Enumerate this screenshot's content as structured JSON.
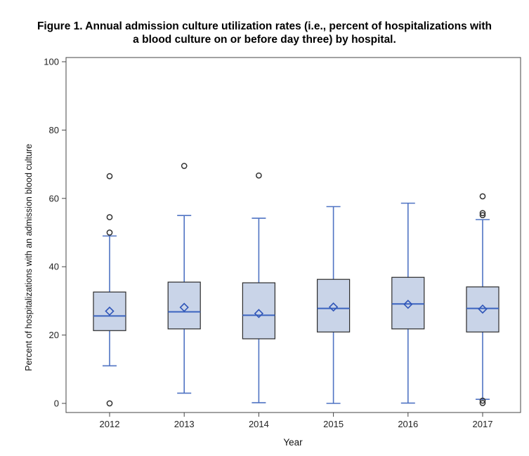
{
  "chart_data": {
    "type": "boxplot",
    "title_lines": [
      "Figure 1. Annual admission culture utilization rates (i.e., percent of hospitalizations with",
      "a blood culture on or before day three) by hospital."
    ],
    "xlabel": "Year",
    "ylabel": "Percent of hospitalizations with an admission blood culture",
    "ylim": [
      0,
      100
    ],
    "yticks": [
      0,
      20,
      40,
      60,
      80,
      100
    ],
    "grid": false,
    "legend": "none",
    "categories": [
      "2012",
      "2013",
      "2014",
      "2015",
      "2016",
      "2017"
    ],
    "boxes": [
      {
        "category": "2012",
        "whisker_low": 11,
        "q1": 21.3,
        "median": 25.6,
        "mean": 27,
        "q3": 32.6,
        "whisker_high": 49,
        "outliers": [
          0,
          50,
          54.5,
          66.5
        ]
      },
      {
        "category": "2013",
        "whisker_low": 3,
        "q1": 21.8,
        "median": 26.8,
        "mean": 28.1,
        "q3": 35.5,
        "whisker_high": 55,
        "outliers": [
          69.5
        ]
      },
      {
        "category": "2014",
        "whisker_low": 0.2,
        "q1": 18.9,
        "median": 25.8,
        "mean": 26.3,
        "q3": 35.3,
        "whisker_high": 54.2,
        "outliers": [
          66.7
        ]
      },
      {
        "category": "2015",
        "whisker_low": 0,
        "q1": 20.9,
        "median": 27.8,
        "mean": 28.2,
        "q3": 36.3,
        "whisker_high": 57.6,
        "outliers": []
      },
      {
        "category": "2016",
        "whisker_low": 0.1,
        "q1": 21.8,
        "median": 29.1,
        "mean": 29,
        "q3": 36.9,
        "whisker_high": 58.6,
        "outliers": []
      },
      {
        "category": "2017",
        "whisker_low": 1.2,
        "q1": 20.9,
        "median": 27.8,
        "mean": 27.6,
        "q3": 34.1,
        "whisker_high": 53.8,
        "outliers": [
          0.1,
          0.8,
          55.1,
          55.7,
          60.6
        ]
      }
    ],
    "colors": {
      "box_fill": "#c9d4e8",
      "box_border": "#2b2b2b",
      "whisker": "#4f73c3",
      "median": "#3b63bf",
      "mean_marker": "#2f55b8",
      "outlier": "#333333",
      "axis": "#444444"
    }
  }
}
